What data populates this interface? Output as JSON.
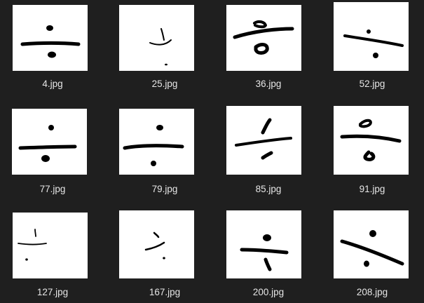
{
  "thumbnails": [
    {
      "label": "4.jpg",
      "icon": "division-symbol-thumbnail"
    },
    {
      "label": "25.jpg",
      "icon": "division-symbol-thumbnail"
    },
    {
      "label": "36.jpg",
      "icon": "division-symbol-thumbnail"
    },
    {
      "label": "52.jpg",
      "icon": "division-symbol-thumbnail"
    },
    {
      "label": "77.jpg",
      "icon": "division-symbol-thumbnail"
    },
    {
      "label": "79.jpg",
      "icon": "division-symbol-thumbnail"
    },
    {
      "label": "85.jpg",
      "icon": "division-symbol-thumbnail"
    },
    {
      "label": "91.jpg",
      "icon": "division-symbol-thumbnail"
    },
    {
      "label": "127.jpg",
      "icon": "division-symbol-thumbnail"
    },
    {
      "label": "167.jpg",
      "icon": "division-symbol-thumbnail"
    },
    {
      "label": "200.jpg",
      "icon": "division-symbol-thumbnail"
    },
    {
      "label": "208.jpg",
      "icon": "division-symbol-thumbnail"
    }
  ],
  "colors": {
    "background": "#1f1f1f",
    "thumbnail": "#ffffff",
    "label": "#e6e6e6",
    "ink": "#000000"
  }
}
